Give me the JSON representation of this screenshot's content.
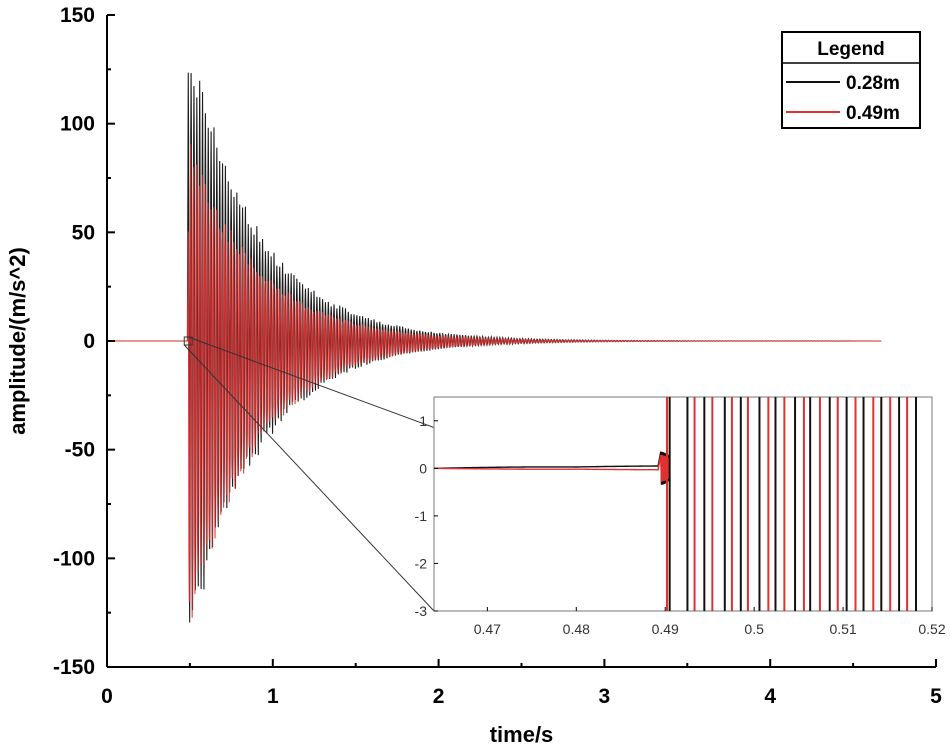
{
  "chart_data": {
    "type": "line",
    "title": "",
    "xlabel": "time/s",
    "ylabel": "amplitude/(m/s^2)",
    "xlim": [
      0,
      5
    ],
    "ylim": [
      -150,
      150
    ],
    "x_ticks": [
      "0",
      "1",
      "2",
      "3",
      "4",
      "5"
    ],
    "y_ticks": [
      "150",
      "100",
      "50",
      "0",
      "-50",
      "-100",
      "-150"
    ],
    "legend": {
      "title": "Legend",
      "position": "top-right",
      "entries": [
        "0.28m",
        "0.49m"
      ]
    },
    "series": [
      {
        "name": "0.28m",
        "color": "#111111",
        "description_params": {
          "onset_s": 0.49,
          "end_s": 4.67,
          "peak_pos": 137,
          "peak_neg": -137,
          "decay_tau_s": 0.42,
          "osc_freq_hz": 58
        }
      },
      {
        "name": "0.49m",
        "color": "#e03030",
        "description_params": {
          "onset_s": 0.49,
          "end_s": 4.67,
          "peak_pos": 90,
          "peak_neg": -130,
          "decay_tau_s": 0.42,
          "osc_freq_hz": 58
        }
      }
    ],
    "inset": {
      "xlim": [
        0.464,
        0.52
      ],
      "ylim": [
        -3,
        1.5
      ],
      "x_ticks": [
        "0.47",
        "0.48",
        "0.49",
        "0.5",
        "0.51",
        "0.52"
      ],
      "y_ticks": [
        "1",
        "0",
        "-1",
        "-2",
        "-3"
      ],
      "zoom_region": {
        "x": [
          0.464,
          0.52
        ],
        "y": [
          -3,
          1.5
        ]
      }
    }
  }
}
